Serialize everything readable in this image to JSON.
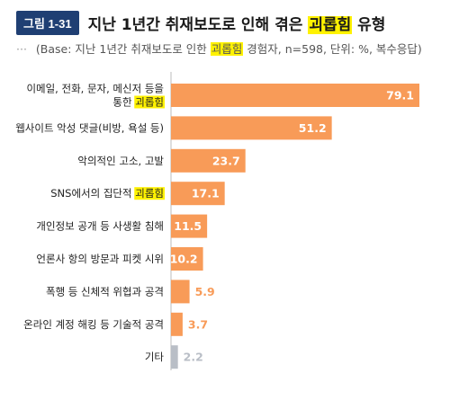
{
  "figure": {
    "badge": "그림 1-31",
    "title_pre": "지난 1년간 취재보도로 인해 겪은 ",
    "title_hl": "괴롭힘",
    "title_post": " 유형",
    "sub_dots": "···",
    "sub_pre": "(Base: 지난 1년간 취재보도로 인한 ",
    "sub_hl": "괴롭힘",
    "sub_post": " 경험자, n=598, 단위: %, 복수응답)"
  },
  "colors": {
    "bar": "#f89b58",
    "bar_other": "#b9bec6",
    "label_in": "#ffffff",
    "label_out": "#f89b58",
    "label_other": "#b9bec6",
    "highlight": "#fff200"
  },
  "chart_data": {
    "type": "bar",
    "orientation": "horizontal",
    "unit": "%",
    "xlim": [
      0,
      79.1
    ],
    "categories": [
      {
        "pre": "이메일, 전화, 문자, 메신저 등을",
        "pre2": "통한 ",
        "hl": "괴롭힘",
        "post": ""
      },
      {
        "pre": "웹사이트 악성 댓글(비방, 욕설 등)",
        "hl": "",
        "post": ""
      },
      {
        "pre": "악의적인 고소, 고발",
        "hl": "",
        "post": ""
      },
      {
        "pre": "SNS에서의 집단적 ",
        "hl": "괴롭힘",
        "post": ""
      },
      {
        "pre": "개인정보 공개 등 사생활 침해",
        "hl": "",
        "post": ""
      },
      {
        "pre": "언론사 항의 방문과 피켓 시위",
        "hl": "",
        "post": ""
      },
      {
        "pre": "폭행 등 신체적 위협과 공격",
        "hl": "",
        "post": ""
      },
      {
        "pre": "온라인 계정 해킹 등 기술적 공격",
        "hl": "",
        "post": ""
      },
      {
        "pre": "기타",
        "hl": "",
        "post": ""
      }
    ],
    "values": [
      79.1,
      51.2,
      23.7,
      17.1,
      11.5,
      10.2,
      5.9,
      3.7,
      2.2
    ],
    "value_labels": [
      "79.1",
      "51.2",
      "23.7",
      "17.1",
      "11.5",
      "10.2",
      "5.9",
      "3.7",
      "2.2"
    ]
  }
}
